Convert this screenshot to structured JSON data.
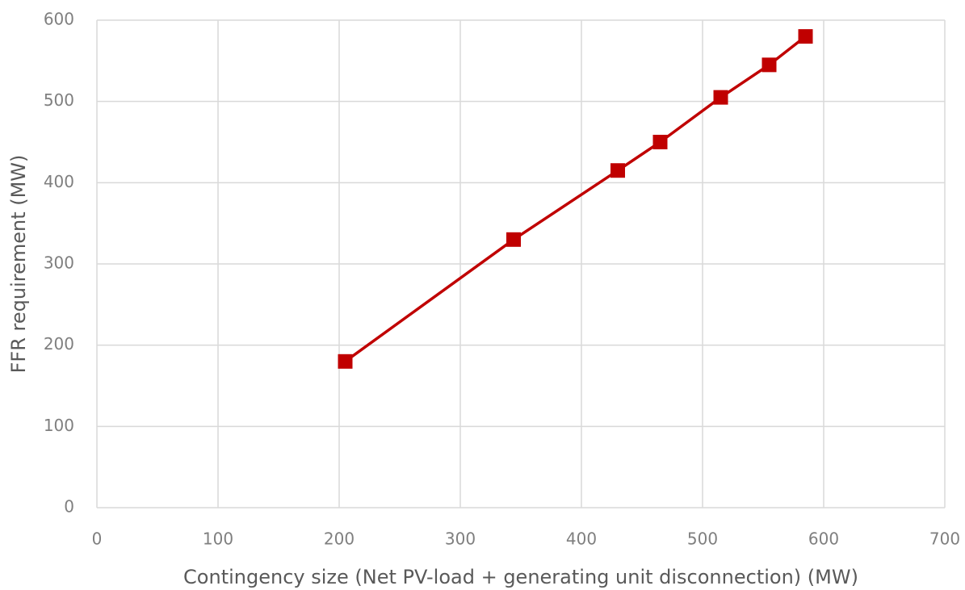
{
  "chart_data": {
    "type": "line",
    "x_label": "Contingency size (Net PV-load + generating unit disconnection) (MW)",
    "y_label": "FFR requirement (MW)",
    "x": [
      205,
      344,
      430,
      465,
      515,
      555,
      585
    ],
    "series": [
      {
        "name": "FFR requirement",
        "color": "#c00000",
        "values": [
          180,
          330,
          415,
          450,
          505,
          545,
          580
        ]
      }
    ],
    "xlim": [
      0,
      700
    ],
    "xticks": [
      0,
      100,
      200,
      300,
      400,
      500,
      600,
      700
    ],
    "ylim": [
      0,
      600
    ],
    "yticks": [
      0,
      100,
      200,
      300,
      400,
      500,
      600
    ],
    "grid": true,
    "marker": "square"
  }
}
